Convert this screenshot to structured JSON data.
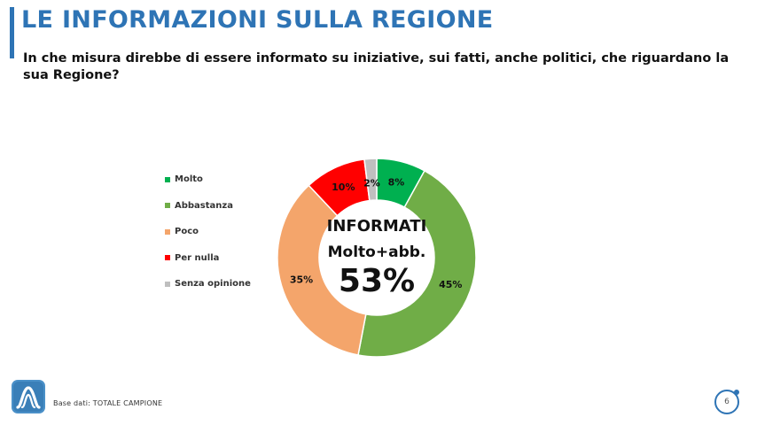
{
  "header": {
    "title": "LE INFORMAZIONI SULLA REGIONE",
    "question": "In che misura direbbe di essere informato su iniziative, sui fatti, anche politici, che riguardano la sua Regione?"
  },
  "center_label": {
    "line1": "INFORMATI",
    "line2": "Molto+abb.",
    "value": "53%"
  },
  "footer": {
    "base_text": "Base dati: TOTALE CAMPIONE",
    "page_number": "6"
  },
  "colors": {
    "accent": "#2e74b5"
  },
  "chart_data": {
    "type": "pie",
    "categories": [
      "Molto",
      "Abbastanza",
      "Poco",
      "Per nulla",
      "Senza opinione"
    ],
    "values": [
      8,
      45,
      35,
      10,
      2
    ],
    "labels": [
      "8%",
      "45%",
      "35%",
      "10%",
      "2%"
    ],
    "colors": [
      "#00b050",
      "#70ad47",
      "#f4a56b",
      "#ff0000",
      "#bfbfbf"
    ],
    "legend": "left"
  }
}
